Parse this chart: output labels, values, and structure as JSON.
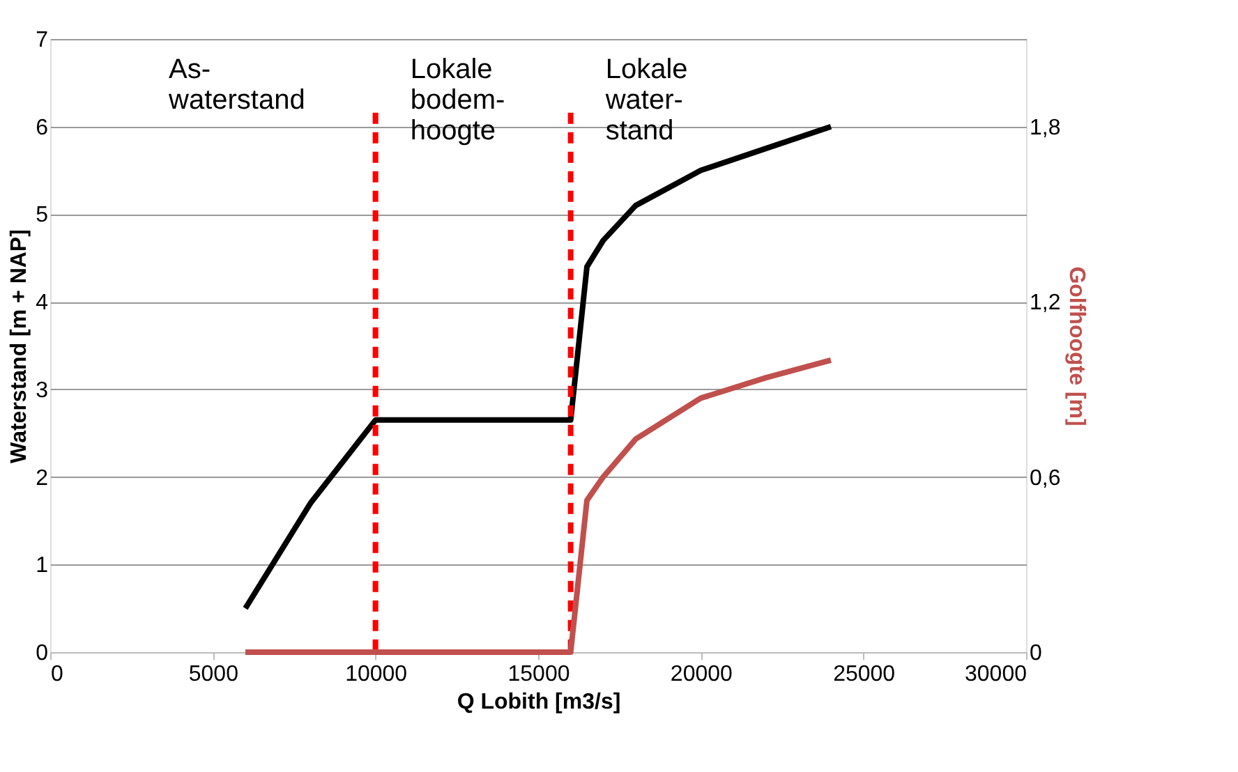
{
  "chart_data": {
    "type": "line",
    "xlabel": "Q Lobith [m3/s]",
    "ylabel": "Waterstand [m + NAP]",
    "y2label": "Golfhoogte [m]",
    "xlim": [
      0,
      30000
    ],
    "xticks": [
      0,
      5000,
      10000,
      15000,
      20000,
      25000,
      30000
    ],
    "ylim": [
      0,
      7
    ],
    "yticks": [
      0,
      1,
      2,
      3,
      4,
      5,
      6,
      7
    ],
    "y2lim": [
      0,
      2.1
    ],
    "y2ticks": [
      0,
      {
        "value": 0.6,
        "label": "0,6"
      },
      {
        "value": 1.2,
        "label": "1,2"
      },
      {
        "value": 1.8,
        "label": "1,8"
      }
    ],
    "grid": "y",
    "line_style": "solid",
    "marker": "none",
    "series": [
      {
        "color": "#000000",
        "x": [
          6000,
          8000,
          10000,
          16000,
          16500,
          17000,
          18000,
          20000,
          22000,
          24000
        ],
        "values": [
          0.5,
          1.7,
          2.65,
          2.65,
          4.4,
          4.7,
          5.1,
          5.5,
          5.75,
          6.0
        ]
      },
      {
        "color": "#c0504d",
        "axis": "y2",
        "x": [
          6000,
          16000,
          16500,
          17000,
          18000,
          20000,
          22000,
          24000
        ],
        "values": [
          0,
          0,
          0.52,
          0.6,
          0.73,
          0.87,
          0.94,
          1.0
        ]
      }
    ],
    "ref_lines": [
      {
        "axis": "x",
        "value": 10000,
        "color": "#ff0000",
        "line_style": "dashed"
      },
      {
        "axis": "x",
        "value": 16000,
        "color": "#ff0000",
        "line_style": "dashed"
      }
    ],
    "annotations": [
      "As-\nwaterstand",
      "Lokale\nbodem-\nhoogte",
      "Lokale\nwater-\nstand"
    ]
  }
}
